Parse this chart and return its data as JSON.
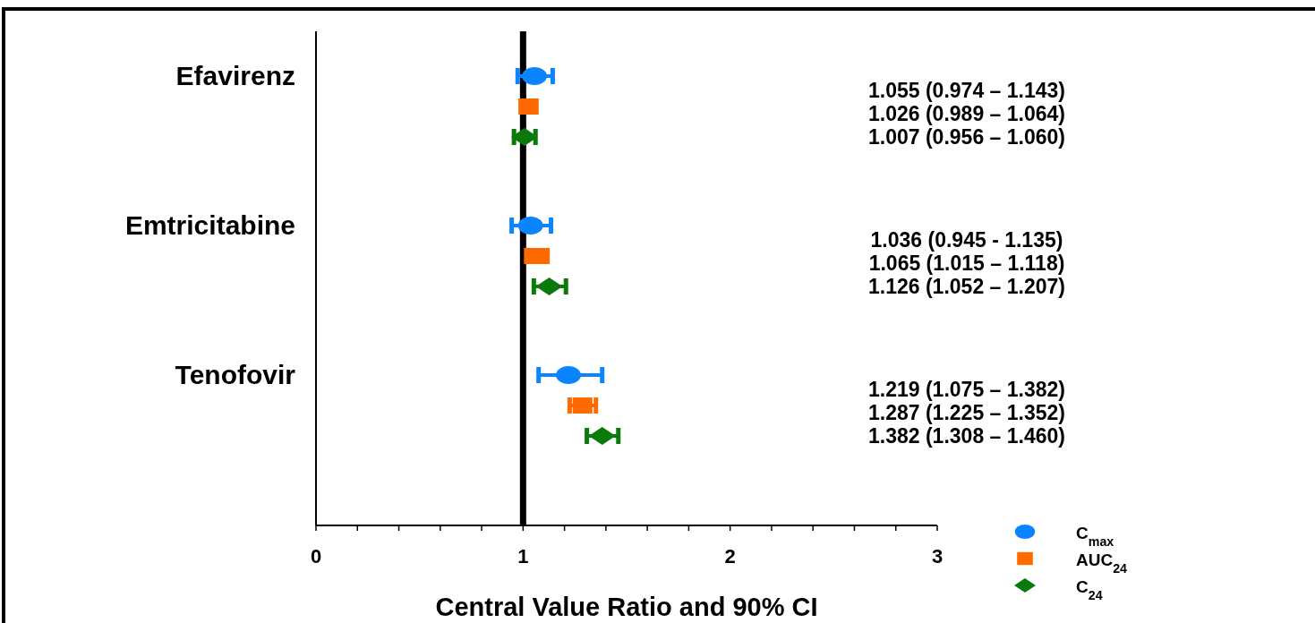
{
  "chart_data": {
    "type": "scatter",
    "orientation": "horizontal",
    "xlabel": "Central Value Ratio and 90% CI",
    "categories": [
      "Efavirenz",
      "Emtricitabine",
      "Tenofovir"
    ],
    "xlim": [
      0,
      3
    ],
    "xticks": [
      0,
      {
        "value": 0.2,
        "label": null
      },
      {
        "value": 0.4,
        "label": null
      },
      {
        "value": 0.6,
        "label": null
      },
      {
        "value": 0.8,
        "label": null
      },
      1,
      {
        "value": 1.2,
        "label": null
      },
      {
        "value": 1.4,
        "label": null
      },
      {
        "value": 1.6,
        "label": null
      },
      {
        "value": 1.8,
        "label": null
      },
      2,
      {
        "value": 2.2,
        "label": null
      },
      {
        "value": 2.4,
        "label": null
      },
      {
        "value": 2.6,
        "label": null
      },
      {
        "value": 2.8,
        "label": null
      },
      3
    ],
    "grid": false,
    "legend": "bottom right",
    "ref_lines": [
      {
        "axis": "x",
        "value": 1,
        "color": "#000000"
      }
    ],
    "annotations": [
      "1.055 (0.974 – 1.143)",
      "1.026 (0.989 – 1.064)",
      "1.007 (0.956 – 1.060)",
      "1.036 (0.945 - 1.135)",
      "1.065 (1.015 – 1.118)",
      "1.126 (1.052 – 1.207)",
      "1.219 (1.075 – 1.382)",
      "1.287 (1.225 – 1.352)",
      "1.382 (1.308 – 1.460)"
    ],
    "series": [
      {
        "name": "C$_{max}$",
        "color": "#0a84ff",
        "marker": "circle",
        "values": [
          1.055,
          1.036,
          1.219
        ],
        "errors": [
          [
            0.974,
            1.143
          ],
          [
            0.945,
            1.135
          ],
          [
            1.075,
            1.382
          ]
        ]
      },
      {
        "name": "AUC$_{24}$",
        "color": "#ff6a00",
        "marker": "square",
        "values": [
          1.026,
          1.065,
          1.287
        ],
        "errors": [
          [
            0.989,
            1.064
          ],
          [
            1.015,
            1.118
          ],
          [
            1.225,
            1.352
          ]
        ]
      },
      {
        "name": "C$_{24}$",
        "color": "#0a7a0a",
        "marker": "diamond",
        "values": [
          1.007,
          1.126,
          1.382
        ],
        "errors": [
          [
            0.956,
            1.06
          ],
          [
            1.052,
            1.207
          ],
          [
            1.308,
            1.46
          ]
        ]
      }
    ]
  }
}
